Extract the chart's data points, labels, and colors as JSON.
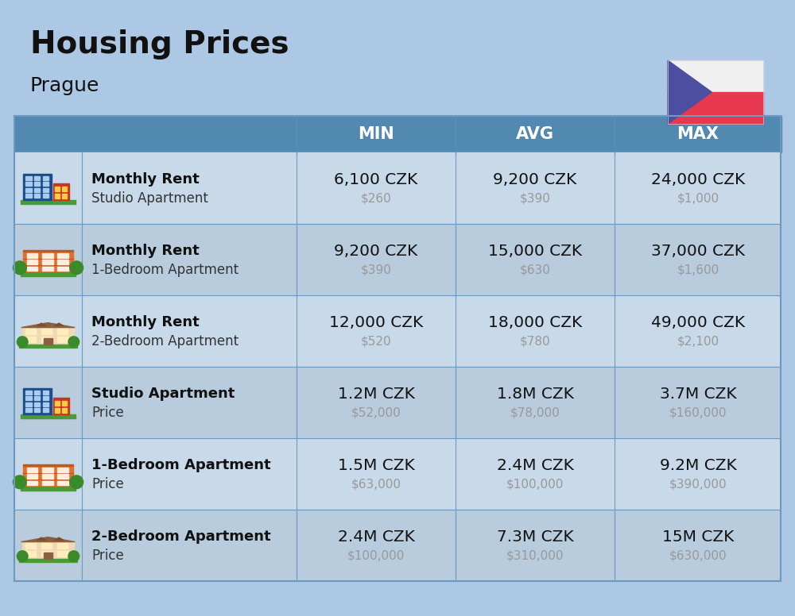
{
  "title": "Housing Prices",
  "subtitle": "Prague",
  "bg_color": "#adc8e4",
  "header_bg": "#5189b0",
  "header_text_color": "#ffffff",
  "row_bg_even": "#c8d9ea",
  "row_bg_odd": "#b8ccdd",
  "col_headers": [
    "MIN",
    "AVG",
    "MAX"
  ],
  "rows": [
    {
      "bold_label": "Monthly Rent",
      "sub_label": "Studio Apartment",
      "min_czk": "6,100 CZK",
      "min_usd": "$260",
      "avg_czk": "9,200 CZK",
      "avg_usd": "$390",
      "max_czk": "24,000 CZK",
      "max_usd": "$1,000",
      "icon_type": "studio_blue"
    },
    {
      "bold_label": "Monthly Rent",
      "sub_label": "1-Bedroom Apartment",
      "min_czk": "9,200 CZK",
      "min_usd": "$390",
      "avg_czk": "15,000 CZK",
      "avg_usd": "$630",
      "max_czk": "37,000 CZK",
      "max_usd": "$1,600",
      "icon_type": "one_bed_orange"
    },
    {
      "bold_label": "Monthly Rent",
      "sub_label": "2-Bedroom Apartment",
      "min_czk": "12,000 CZK",
      "min_usd": "$520",
      "avg_czk": "18,000 CZK",
      "avg_usd": "$780",
      "max_czk": "49,000 CZK",
      "max_usd": "$2,100",
      "icon_type": "two_bed_tan"
    },
    {
      "bold_label": "Studio Apartment",
      "sub_label": "Price",
      "min_czk": "1.2M CZK",
      "min_usd": "$52,000",
      "avg_czk": "1.8M CZK",
      "avg_usd": "$78,000",
      "max_czk": "3.7M CZK",
      "max_usd": "$160,000",
      "icon_type": "studio_blue"
    },
    {
      "bold_label": "1-Bedroom Apartment",
      "sub_label": "Price",
      "min_czk": "1.5M CZK",
      "min_usd": "$63,000",
      "avg_czk": "2.4M CZK",
      "avg_usd": "$100,000",
      "max_czk": "9.2M CZK",
      "max_usd": "$390,000",
      "icon_type": "one_bed_orange"
    },
    {
      "bold_label": "2-Bedroom Apartment",
      "sub_label": "Price",
      "min_czk": "2.4M CZK",
      "min_usd": "$100,000",
      "avg_czk": "7.3M CZK",
      "avg_usd": "$310,000",
      "max_czk": "15M CZK",
      "max_usd": "$630,000",
      "icon_type": "two_bed_tan"
    }
  ],
  "divider_color": "#6a9abf",
  "czk_fontsize": 14.5,
  "usd_fontsize": 11,
  "usd_color": "#999999",
  "label_bold_size": 13,
  "label_sub_size": 12,
  "flag_blue": "#4c4fa0",
  "flag_red": "#e8384f",
  "flag_white": "#f0f0f0"
}
